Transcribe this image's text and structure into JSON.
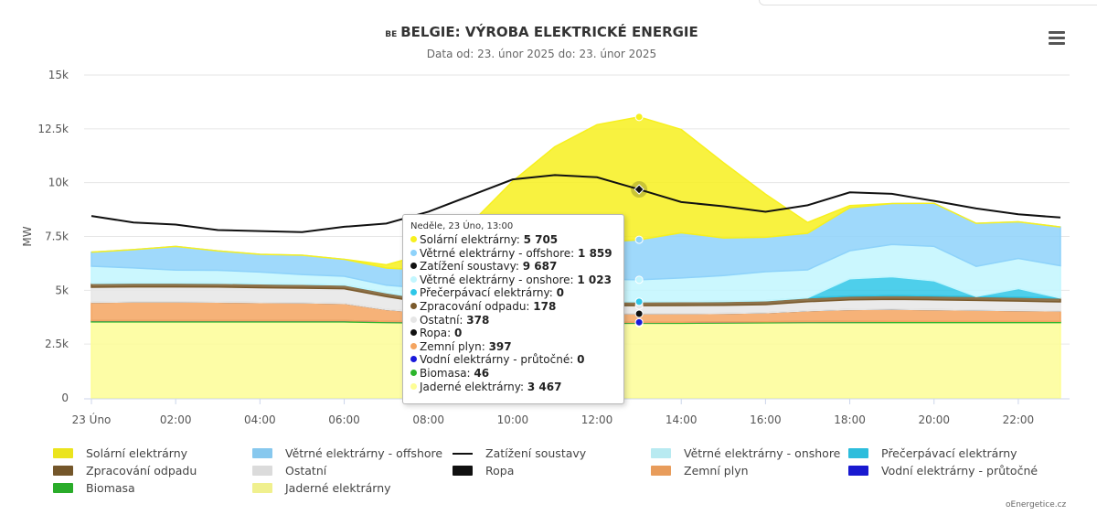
{
  "header": {
    "flag_text": "BE",
    "title": "BELGIE: VÝROBA ELEKTRICKÉ ENERGIE",
    "subtitle": "Data od: 23. únor 2025 do: 23. únor 2025",
    "menu_icon": "hamburger-menu-icon"
  },
  "credit": "oEnergetice.cz",
  "chart_data": {
    "type": "area",
    "title": "BELGIE: VÝROBA ELEKTRICKÉ ENERGIE",
    "subtitle": "Data od: 23. únor 2025 do: 23. únor 2025",
    "ylabel": "MW",
    "xlabel": "",
    "ylim": [
      0,
      15000
    ],
    "y_ticks": [
      0,
      2500,
      5000,
      7500,
      10000,
      12500,
      15000
    ],
    "y_tick_labels": [
      "0",
      "2.5k",
      "5k",
      "7.5k",
      "10k",
      "12.5k",
      "15k"
    ],
    "x_hours": [
      0,
      1,
      2,
      3,
      4,
      5,
      6,
      7,
      8,
      9,
      10,
      11,
      12,
      13,
      14,
      15,
      16,
      17,
      18,
      19,
      20,
      21,
      22,
      23
    ],
    "x_tick_hours": [
      0,
      2,
      4,
      6,
      8,
      10,
      12,
      14,
      16,
      18,
      20,
      22
    ],
    "x_tick_labels": [
      "23 Úno",
      "02:00",
      "04:00",
      "06:00",
      "08:00",
      "10:00",
      "12:00",
      "14:00",
      "16:00",
      "18:00",
      "20:00",
      "22:00"
    ],
    "grid": true,
    "stacked": true,
    "legend_position": "bottom",
    "series": [
      {
        "name": "Jaderné elektrárny",
        "color": "#fdfd96",
        "values": [
          3530,
          3530,
          3530,
          3530,
          3530,
          3530,
          3530,
          3500,
          3480,
          3470,
          3470,
          3470,
          3470,
          3467,
          3470,
          3480,
          3490,
          3500,
          3500,
          3500,
          3500,
          3500,
          3500,
          3500
        ]
      },
      {
        "name": "Biomasa",
        "color": "#2cb52c",
        "values": [
          60,
          60,
          60,
          60,
          60,
          60,
          60,
          55,
          50,
          48,
          46,
          46,
          46,
          46,
          46,
          46,
          46,
          50,
          55,
          60,
          60,
          60,
          60,
          60
        ]
      },
      {
        "name": "Vodní elektrárny - průtočné",
        "color": "#1a1adb",
        "values": [
          0,
          0,
          0,
          0,
          0,
          0,
          0,
          0,
          0,
          0,
          0,
          0,
          0,
          0,
          0,
          0,
          0,
          0,
          0,
          0,
          0,
          0,
          0,
          0
        ]
      },
      {
        "name": "Zemní plyn",
        "color": "#f4a460",
        "values": [
          850,
          870,
          870,
          860,
          840,
          830,
          800,
          550,
          420,
          400,
          397,
          397,
          397,
          397,
          397,
          397,
          420,
          500,
          550,
          560,
          540,
          520,
          500,
          480
        ]
      },
      {
        "name": "Ropa",
        "color": "#111111",
        "values": [
          0,
          0,
          0,
          0,
          0,
          0,
          0,
          0,
          0,
          0,
          0,
          0,
          0,
          0,
          0,
          0,
          0,
          0,
          0,
          0,
          0,
          0,
          0,
          0
        ]
      },
      {
        "name": "Ostatní",
        "color": "#e6e6e6",
        "values": [
          700,
          700,
          700,
          700,
          690,
          680,
          680,
          600,
          450,
          400,
          380,
          380,
          378,
          378,
          380,
          380,
          380,
          420,
          450,
          460,
          460,
          450,
          440,
          420
        ]
      },
      {
        "name": "Zpracování odpadu",
        "color": "#7a5a2c",
        "values": [
          180,
          180,
          180,
          180,
          180,
          180,
          180,
          180,
          178,
          178,
          178,
          178,
          178,
          178,
          178,
          178,
          178,
          180,
          180,
          180,
          180,
          180,
          180,
          180
        ]
      },
      {
        "name": "Přečerpávací elektrárny",
        "color": "#2fc7e8",
        "values": [
          0,
          0,
          0,
          0,
          0,
          0,
          0,
          0,
          0,
          0,
          0,
          0,
          0,
          0,
          0,
          0,
          0,
          0,
          800,
          870,
          700,
          0,
          400,
          0
        ]
      },
      {
        "name": "Větrné elektrárny - onshore",
        "color": "#c2f6fe",
        "values": [
          800,
          700,
          600,
          600,
          550,
          450,
          400,
          350,
          500,
          700,
          900,
          1000,
          1050,
          1023,
          1100,
          1200,
          1350,
          1300,
          1300,
          1500,
          1600,
          1400,
          1400,
          1500
        ]
      },
      {
        "name": "Větrné elektrárny - offshore",
        "color": "#8ed2fa",
        "values": [
          650,
          850,
          1100,
          900,
          820,
          900,
          790,
          800,
          850,
          900,
          1200,
          1500,
          1700,
          1859,
          2100,
          1750,
          1600,
          1700,
          2000,
          1900,
          2000,
          2000,
          1700,
          1800
        ]
      },
      {
        "name": "Solární elektrárny",
        "color": "#f7f01e",
        "values": [
          0,
          0,
          0,
          0,
          0,
          0,
          0,
          150,
          800,
          2000,
          3500,
          4700,
          5470,
          5705,
          4800,
          3500,
          2000,
          500,
          100,
          0,
          0,
          0,
          0,
          0
        ]
      },
      {
        "name": "Zatížení soustavy",
        "color": "#111111",
        "type": "line",
        "values": [
          8450,
          8150,
          8050,
          7800,
          7750,
          7700,
          7950,
          8100,
          8650,
          9400,
          10150,
          10350,
          10250,
          9687,
          9100,
          8900,
          8650,
          8950,
          9550,
          9480,
          9150,
          8800,
          8530,
          8380
        ]
      }
    ],
    "tooltip": {
      "header": "Neděle, 23 Úno, 13:00",
      "rows": [
        {
          "name": "Solární elektrárny",
          "value": "5 705",
          "color": "#f7f01e"
        },
        {
          "name": "Větrné elektrárny - offshore",
          "value": "1 859",
          "color": "#8ed2fa"
        },
        {
          "name": "Zatížení soustavy",
          "value": "9 687",
          "color": "#111111"
        },
        {
          "name": "Větrné elektrárny - onshore",
          "value": "1 023",
          "color": "#c2f6fe"
        },
        {
          "name": "Přečerpávací elektrárny",
          "value": "0",
          "color": "#2fc7e8"
        },
        {
          "name": "Zpracování odpadu",
          "value": "178",
          "color": "#7a5a2c"
        },
        {
          "name": "Ostatní",
          "value": "378",
          "color": "#e6e6e6"
        },
        {
          "name": "Ropa",
          "value": "0",
          "color": "#111111"
        },
        {
          "name": "Zemní plyn",
          "value": "397",
          "color": "#f4a460"
        },
        {
          "name": "Vodní elektrárny - průtočné",
          "value": "0",
          "color": "#1a1adb"
        },
        {
          "name": "Biomasa",
          "value": "46",
          "color": "#2cb52c"
        },
        {
          "name": "Jaderné elektrárny",
          "value": "3 467",
          "color": "#fdfd96"
        }
      ]
    },
    "legend": [
      {
        "name": "Solární elektrárny",
        "color": "#f7f01e",
        "kind": "area"
      },
      {
        "name": "Větrné elektrárny - offshore",
        "color": "#8ed2fa",
        "kind": "area"
      },
      {
        "name": "Zatížení soustavy",
        "color": "#111111",
        "kind": "line"
      },
      {
        "name": "Větrné elektrárny - onshore",
        "color": "#c2f6fe",
        "kind": "area"
      },
      {
        "name": "Přečerpávací elektrárny",
        "color": "#2fc7e8",
        "kind": "area"
      },
      {
        "name": "Zpracování odpadu",
        "color": "#7a5a2c",
        "kind": "area"
      },
      {
        "name": "Ostatní",
        "color": "#e6e6e6",
        "kind": "area"
      },
      {
        "name": "Ropa",
        "color": "#111111",
        "kind": "area"
      },
      {
        "name": "Zemní plyn",
        "color": "#f4a460",
        "kind": "area"
      },
      {
        "name": "Vodní elektrárny - průtočné",
        "color": "#1a1adb",
        "kind": "area"
      },
      {
        "name": "Biomasa",
        "color": "#2cb52c",
        "kind": "area"
      },
      {
        "name": "Jaderné elektrárny",
        "color": "#fdfd96",
        "kind": "area"
      }
    ]
  }
}
